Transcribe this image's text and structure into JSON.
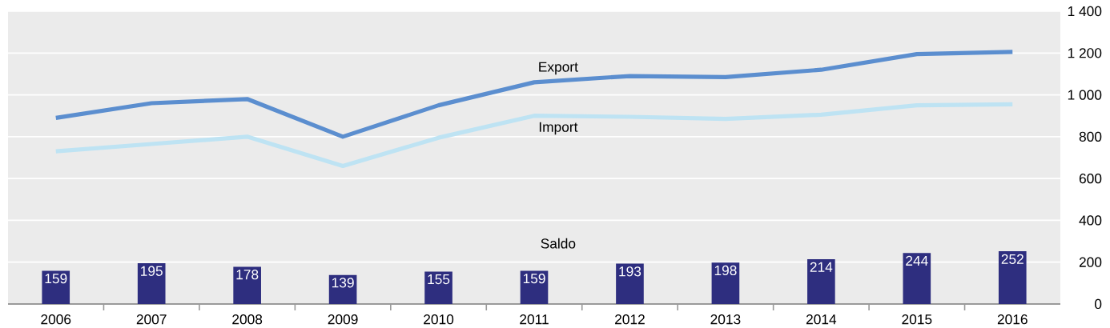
{
  "chart_data": {
    "type": "line",
    "categories": [
      "2006",
      "2007",
      "2008",
      "2009",
      "2010",
      "2011",
      "2012",
      "2013",
      "2014",
      "2015",
      "2016"
    ],
    "series": [
      {
        "name": "Saldo",
        "type": "bar",
        "color": "#2e2e7f",
        "values": [
          159,
          195,
          178,
          139,
          155,
          159,
          193,
          198,
          214,
          244,
          252
        ],
        "value_labels": [
          "159",
          "195",
          "178",
          "139",
          "155",
          "159",
          "193",
          "198",
          "214",
          "244",
          "252"
        ]
      },
      {
        "name": "Export",
        "color": "#5b8ecf",
        "values": [
          890,
          960,
          980,
          800,
          950,
          1060,
          1090,
          1085,
          1120,
          1195,
          1205
        ]
      },
      {
        "name": "Import",
        "color": "#bee3f3",
        "values": [
          730,
          765,
          800,
          660,
          795,
          900,
          895,
          885,
          905,
          950,
          955
        ]
      }
    ],
    "ylim": [
      0,
      1400
    ],
    "yticks": [
      0,
      200,
      400,
      600,
      800,
      {
        "value": 1000,
        "label": "1 000"
      },
      {
        "value": 1200,
        "label": "1 200"
      },
      {
        "value": 1400,
        "label": "1 400"
      }
    ],
    "grid": "y",
    "legend": false,
    "marker": "none",
    "line_style": "solid"
  }
}
